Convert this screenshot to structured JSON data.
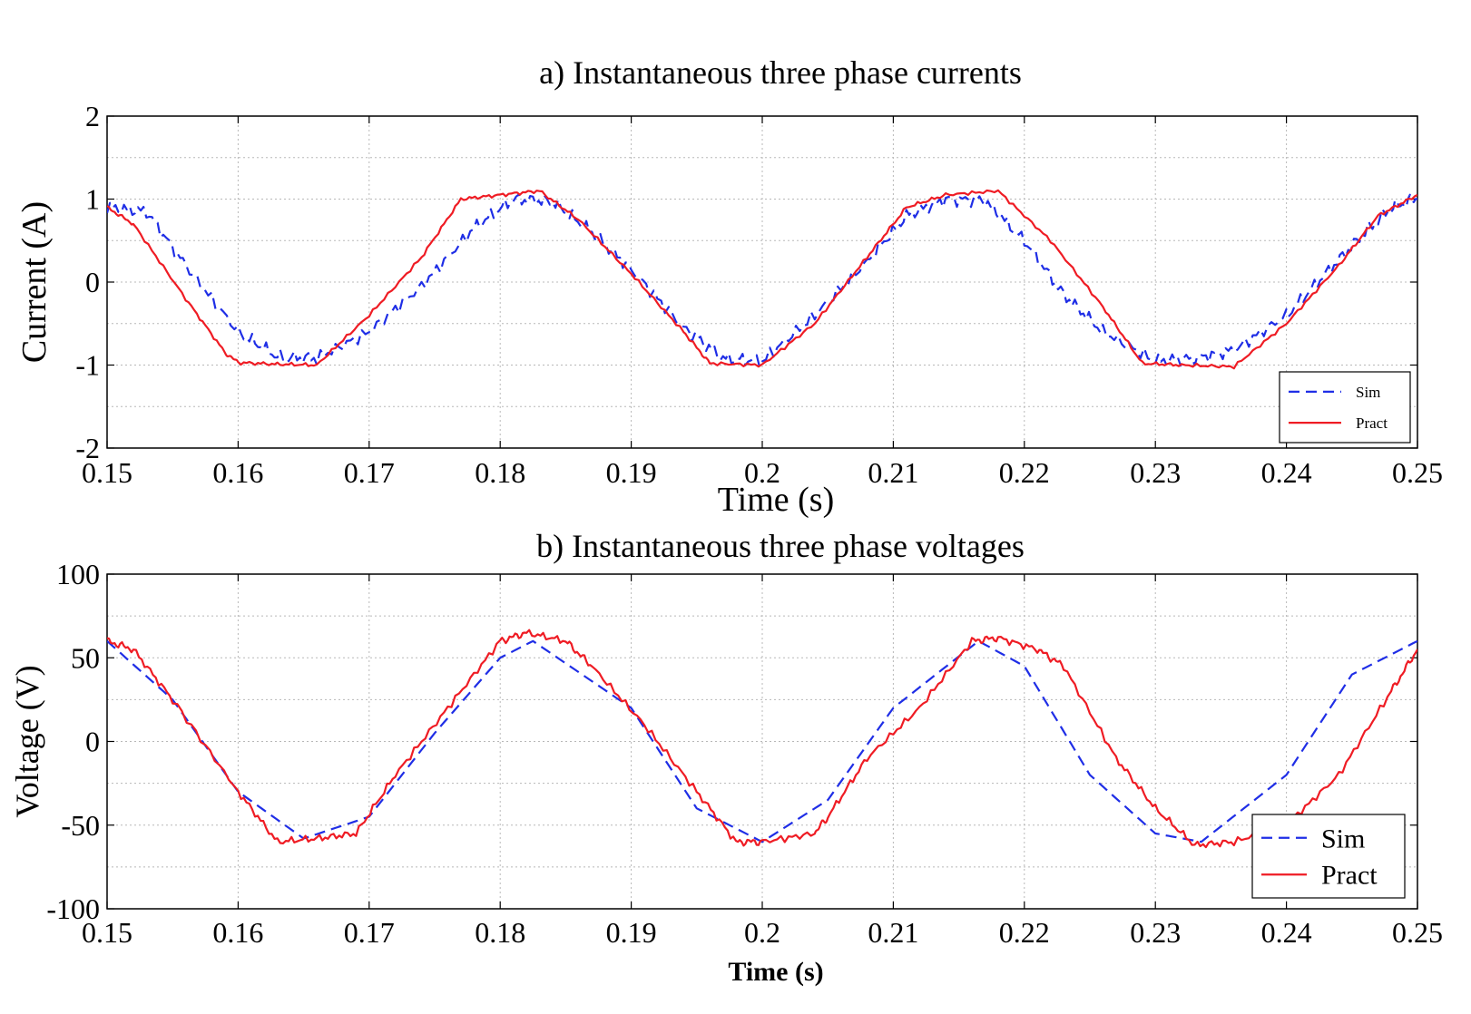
{
  "chart_data": [
    {
      "type": "line",
      "title": "a) Instantaneous three phase currents",
      "xlabel": "Time (s)",
      "ylabel": "Current (A)",
      "xlim": [
        0.15,
        0.25
      ],
      "ylim": [
        -2,
        2
      ],
      "xticks": [
        0.15,
        0.16,
        0.17,
        0.18,
        0.19,
        0.2,
        0.21,
        0.22,
        0.23,
        0.24,
        0.25
      ],
      "xtick_labels": [
        "0.15",
        "0.16",
        "0.17",
        "0.18",
        "0.19",
        "0.2",
        "0.21",
        "0.22",
        "0.23",
        "0.24",
        "0.25"
      ],
      "yticks": [
        -2,
        -1,
        0,
        1,
        2
      ],
      "ytick_labels": [
        "-2",
        "-1",
        "0",
        "1",
        "2"
      ],
      "grid": true,
      "legend_position": "bottom-right",
      "series": [
        {
          "name": "Sim",
          "color": "#1f2ee6",
          "style": "dashed",
          "x": [
            0.15,
            0.153,
            0.156,
            0.16,
            0.163,
            0.166,
            0.17,
            0.174,
            0.178,
            0.181,
            0.184,
            0.187,
            0.19,
            0.194,
            0.197,
            0.2,
            0.204,
            0.208,
            0.211,
            0.214,
            0.217,
            0.22,
            0.223,
            0.226,
            0.23,
            0.233,
            0.236,
            0.24,
            0.243,
            0.246,
            0.248,
            0.25
          ],
          "y": [
            0.9,
            0.85,
            0.2,
            -0.6,
            -0.9,
            -0.92,
            -0.6,
            -0.05,
            0.65,
            1.0,
            0.97,
            0.6,
            0.15,
            -0.55,
            -0.92,
            -0.95,
            -0.4,
            0.25,
            0.8,
            1.0,
            0.98,
            0.5,
            -0.15,
            -0.6,
            -0.95,
            -0.92,
            -0.82,
            -0.4,
            0.1,
            0.6,
            0.9,
            1.0
          ]
        },
        {
          "name": "Pract",
          "color": "#ef1c24",
          "style": "solid",
          "x": [
            0.15,
            0.152,
            0.156,
            0.159,
            0.16,
            0.163,
            0.166,
            0.17,
            0.174,
            0.177,
            0.18,
            0.183,
            0.186,
            0.19,
            0.194,
            0.196,
            0.2,
            0.204,
            0.208,
            0.211,
            0.214,
            0.218,
            0.222,
            0.226,
            0.229,
            0.232,
            0.236,
            0.24,
            0.244,
            0.247,
            0.25
          ],
          "y": [
            0.9,
            0.7,
            -0.2,
            -0.85,
            -0.97,
            -0.99,
            -1.0,
            -0.4,
            0.3,
            1.0,
            1.05,
            1.1,
            0.75,
            0.1,
            -0.6,
            -0.98,
            -1.0,
            -0.5,
            0.3,
            0.9,
            1.05,
            1.1,
            0.5,
            -0.3,
            -0.98,
            -1.0,
            -1.02,
            -0.5,
            0.2,
            0.8,
            1.05
          ]
        }
      ]
    },
    {
      "type": "line",
      "title": "b) Instantaneous three phase voltages",
      "xlabel": "Time (s)",
      "ylabel": "Voltage (V)",
      "xlim": [
        0.15,
        0.25
      ],
      "ylim": [
        -100,
        100
      ],
      "xticks": [
        0.15,
        0.16,
        0.17,
        0.18,
        0.19,
        0.2,
        0.21,
        0.22,
        0.23,
        0.24,
        0.25
      ],
      "xtick_labels": [
        "0.15",
        "0.16",
        "0.17",
        "0.18",
        "0.19",
        "0.2",
        "0.21",
        "0.22",
        "0.23",
        "0.24",
        "0.25"
      ],
      "yticks": [
        -100,
        -50,
        0,
        50,
        100
      ],
      "ytick_labels": [
        "-100",
        "-50",
        "0",
        "50",
        "100"
      ],
      "grid": true,
      "legend_position": "bottom-right",
      "series": [
        {
          "name": "Sim",
          "color": "#1f2ee6",
          "style": "dashed",
          "x": [
            0.15,
            0.155,
            0.16,
            0.165,
            0.17,
            0.175,
            0.18,
            0.1825,
            0.19,
            0.195,
            0.2,
            0.205,
            0.21,
            0.2165,
            0.22,
            0.225,
            0.23,
            0.2335,
            0.24,
            0.245,
            0.25
          ],
          "y": [
            60,
            25,
            -30,
            -58,
            -45,
            5,
            50,
            60,
            20,
            -40,
            -60,
            -35,
            20,
            60,
            45,
            -20,
            -55,
            -60,
            -20,
            40,
            60
          ]
        },
        {
          "name": "Pract",
          "color": "#ef1c24",
          "style": "solid",
          "x": [
            0.15,
            0.152,
            0.155,
            0.16,
            0.163,
            0.166,
            0.169,
            0.172,
            0.176,
            0.18,
            0.182,
            0.185,
            0.187,
            0.191,
            0.195,
            0.198,
            0.2,
            0.204,
            0.205,
            0.208,
            0.212,
            0.216,
            0.218,
            0.221,
            0.223,
            0.227,
            0.23,
            0.233,
            0.236,
            0.24,
            0.244,
            0.248,
            0.25
          ],
          "y": [
            60,
            55,
            25,
            -30,
            -60,
            -58,
            -55,
            -20,
            20,
            60,
            65,
            60,
            45,
            10,
            -30,
            -60,
            -60,
            -55,
            -45,
            -10,
            20,
            60,
            62,
            55,
            45,
            -10,
            -40,
            -62,
            -60,
            -50,
            -20,
            30,
            55
          ]
        }
      ]
    }
  ]
}
